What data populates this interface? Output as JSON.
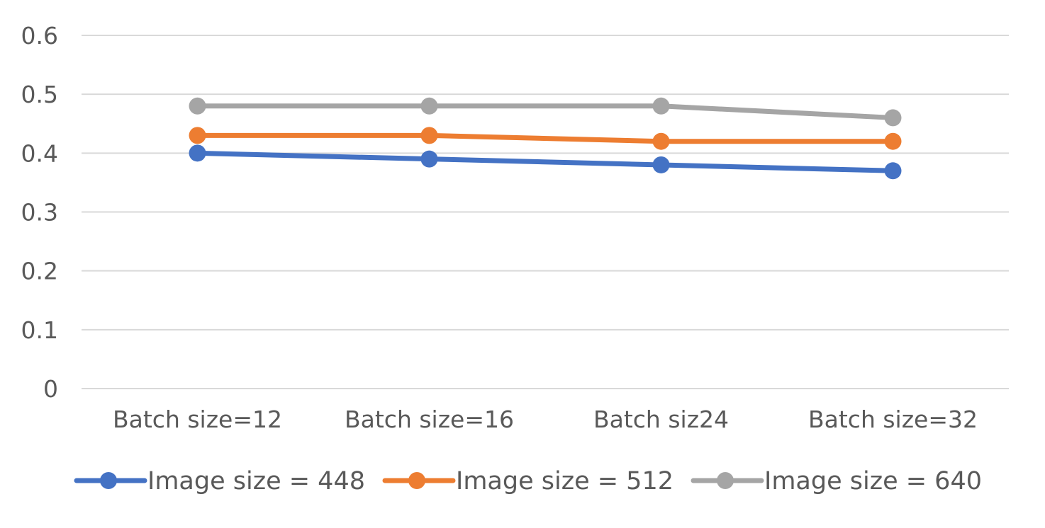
{
  "chart_data": {
    "type": "line",
    "title": "",
    "xlabel": "",
    "ylabel": "",
    "categories": [
      "Batch size=12",
      "Batch size=16",
      "Batch siz24",
      "Batch size=32"
    ],
    "ylim": [
      0,
      0.6
    ],
    "yticks": [
      "0",
      "0.1",
      "0.2",
      "0.3",
      "0.4",
      "0.5",
      "0.6"
    ],
    "grid": true,
    "legend_position": "bottom",
    "series": [
      {
        "name": "Image size = 448",
        "color": "#4472C4",
        "values": [
          0.4,
          0.39,
          0.38,
          0.37
        ]
      },
      {
        "name": "Image size = 512",
        "color": "#ED7D31",
        "values": [
          0.43,
          0.43,
          0.42,
          0.42
        ]
      },
      {
        "name": "Image size = 640",
        "color": "#A5A5A5",
        "values": [
          0.48,
          0.48,
          0.48,
          0.46
        ]
      }
    ]
  }
}
